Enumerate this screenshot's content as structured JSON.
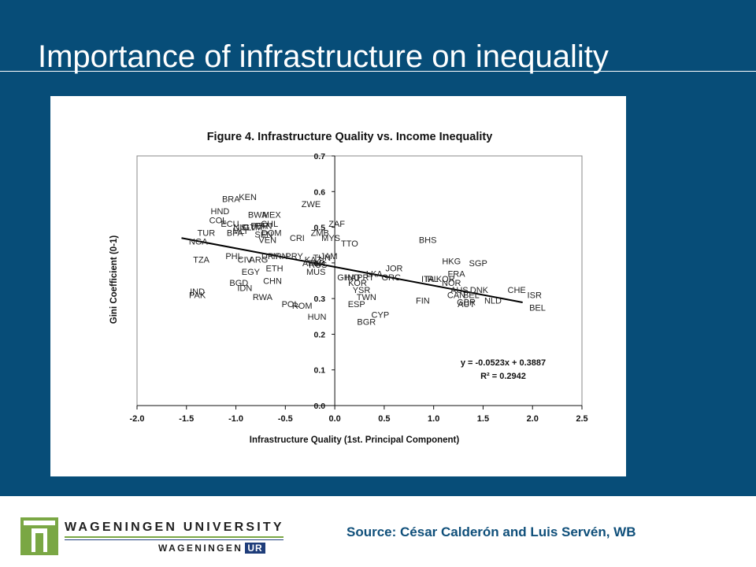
{
  "slide": {
    "title": "Importance of infrastructure on inequality",
    "source": "Source: César Calderón and Luis Servén, WB",
    "logo": {
      "line1": "WAGENINGEN UNIVERSITY",
      "line2": "WAGENINGEN",
      "badge": "UR"
    },
    "colors": {
      "band": "#074d78",
      "source_text": "#0f4f7a",
      "logo_green": "#7aa744",
      "logo_blue": "#1f3d7a"
    }
  },
  "chart_data": {
    "type": "scatter",
    "title": "Figure 4. Infrastructure Quality vs. Income Inequality",
    "xlabel": "Infrastructure Quality (1st. Principal Component)",
    "ylabel": "Gini Coefficient (0-1)",
    "xlim": [
      -2.0,
      2.5
    ],
    "ylim": [
      0.0,
      0.7
    ],
    "xticks": [
      -2.0,
      -1.5,
      -1.0,
      -0.5,
      0.0,
      0.5,
      1.0,
      1.5,
      2.0,
      2.5
    ],
    "xtick_labels": [
      "-2.0",
      "-1.5",
      "-1.0",
      "-0.5",
      "0.0",
      "0.5",
      "1.0",
      "1.5",
      "2.0",
      "2.5"
    ],
    "yticks": [
      0.0,
      0.1,
      0.2,
      0.3,
      0.4,
      0.5,
      0.6,
      0.7
    ],
    "ytick_labels": [
      "0.0",
      "0.1",
      "0.2",
      "0.3",
      "0.4",
      "0.5",
      "0.6",
      "0.7"
    ],
    "grid": false,
    "marker": "country-code-labels",
    "points": [
      {
        "label": "BRA",
        "x": -1.05,
        "y": 0.58
      },
      {
        "label": "KEN",
        "x": -0.88,
        "y": 0.585
      },
      {
        "label": "ZWE",
        "x": -0.24,
        "y": 0.565
      },
      {
        "label": "HND",
        "x": -1.16,
        "y": 0.545
      },
      {
        "label": "BWA",
        "x": -0.78,
        "y": 0.535
      },
      {
        "label": "MEX",
        "x": -0.64,
        "y": 0.535
      },
      {
        "label": "COL",
        "x": -1.18,
        "y": 0.52
      },
      {
        "label": "ECU",
        "x": -1.06,
        "y": 0.51
      },
      {
        "label": "CHL",
        "x": -0.66,
        "y": 0.51
      },
      {
        "label": "ZAF",
        "x": 0.02,
        "y": 0.51
      },
      {
        "label": "PER",
        "x": -0.76,
        "y": 0.505
      },
      {
        "label": "PAN",
        "x": -0.72,
        "y": 0.505
      },
      {
        "label": "NIC",
        "x": -0.95,
        "y": 0.5
      },
      {
        "label": "GTM",
        "x": -0.83,
        "y": 0.5
      },
      {
        "label": "SLV",
        "x": -0.87,
        "y": 0.5
      },
      {
        "label": "TUR",
        "x": -1.3,
        "y": 0.485
      },
      {
        "label": "BFA",
        "x": -1.01,
        "y": 0.485
      },
      {
        "label": "DOM",
        "x": -0.64,
        "y": 0.485
      },
      {
        "label": "ZMB",
        "x": -0.15,
        "y": 0.485
      },
      {
        "label": "MLI",
        "x": -0.96,
        "y": 0.49
      },
      {
        "label": "SEN",
        "x": -0.72,
        "y": 0.48
      },
      {
        "label": "NGA",
        "x": -1.38,
        "y": 0.46
      },
      {
        "label": "VEN",
        "x": -0.68,
        "y": 0.465
      },
      {
        "label": "CRI",
        "x": -0.38,
        "y": 0.47
      },
      {
        "label": "MYS",
        "x": -0.04,
        "y": 0.47
      },
      {
        "label": "BHS",
        "x": 0.94,
        "y": 0.465
      },
      {
        "label": "TTO",
        "x": 0.15,
        "y": 0.455
      },
      {
        "label": "PHL",
        "x": -1.02,
        "y": 0.42
      },
      {
        "label": "URY",
        "x": -0.65,
        "y": 0.42
      },
      {
        "label": "IRN",
        "x": -0.55,
        "y": 0.42
      },
      {
        "label": "PRY",
        "x": -0.41,
        "y": 0.42
      },
      {
        "label": "JAM",
        "x": -0.06,
        "y": 0.42
      },
      {
        "label": "TZA",
        "x": -1.35,
        "y": 0.41
      },
      {
        "label": "CIV",
        "x": -0.91,
        "y": 0.41
      },
      {
        "label": "ARG",
        "x": -0.77,
        "y": 0.41
      },
      {
        "label": "KAZ",
        "x": -0.22,
        "y": 0.41
      },
      {
        "label": "TUN",
        "x": -0.13,
        "y": 0.415
      },
      {
        "label": "HKG",
        "x": 1.18,
        "y": 0.405
      },
      {
        "label": "SGP",
        "x": 1.45,
        "y": 0.4
      },
      {
        "label": "ETH",
        "x": -0.61,
        "y": 0.385
      },
      {
        "label": "EGY",
        "x": -0.85,
        "y": 0.375
      },
      {
        "label": "MUS",
        "x": -0.19,
        "y": 0.375
      },
      {
        "label": "JOR",
        "x": 0.6,
        "y": 0.385
      },
      {
        "label": "RUS",
        "x": -0.17,
        "y": 0.395
      },
      {
        "label": "ARM",
        "x": -0.23,
        "y": 0.4
      },
      {
        "label": "GHA",
        "x": 0.12,
        "y": 0.36
      },
      {
        "label": "IND",
        "x": 0.18,
        "y": 0.36
      },
      {
        "label": "LKA",
        "x": 0.4,
        "y": 0.37
      },
      {
        "label": "PRT",
        "x": 0.31,
        "y": 0.36
      },
      {
        "label": "GRC",
        "x": 0.57,
        "y": 0.36
      },
      {
        "label": "ITA",
        "x": 0.94,
        "y": 0.355
      },
      {
        "label": "IRL",
        "x": 0.98,
        "y": 0.355
      },
      {
        "label": "FRA",
        "x": 1.23,
        "y": 0.37
      },
      {
        "label": "KOR",
        "x": 1.12,
        "y": 0.355
      },
      {
        "label": "NOR",
        "x": 1.18,
        "y": 0.345
      },
      {
        "label": "BGD",
        "x": -0.97,
        "y": 0.345
      },
      {
        "label": "CHN",
        "x": -0.63,
        "y": 0.35
      },
      {
        "label": "KOR",
        "x": 0.23,
        "y": 0.345
      },
      {
        "label": "IDN",
        "x": -0.91,
        "y": 0.33
      },
      {
        "label": "YSR",
        "x": 0.27,
        "y": 0.325
      },
      {
        "label": "CHE",
        "x": 1.84,
        "y": 0.325
      },
      {
        "label": "DNK",
        "x": 1.46,
        "y": 0.325
      },
      {
        "label": "AUS",
        "x": 1.26,
        "y": 0.325
      },
      {
        "label": "BEL",
        "x": 1.38,
        "y": 0.31
      },
      {
        "label": "CAN",
        "x": 1.23,
        "y": 0.31
      },
      {
        "label": "IND",
        "x": -1.39,
        "y": 0.32
      },
      {
        "label": "PAK",
        "x": -1.39,
        "y": 0.31
      },
      {
        "label": "RWA",
        "x": -0.73,
        "y": 0.305
      },
      {
        "label": "TWN",
        "x": 0.32,
        "y": 0.305
      },
      {
        "label": "ISR",
        "x": 2.02,
        "y": 0.31
      },
      {
        "label": "NLD",
        "x": 1.6,
        "y": 0.295
      },
      {
        "label": "FIN",
        "x": 0.89,
        "y": 0.295
      },
      {
        "label": "GBR",
        "x": 1.33,
        "y": 0.29
      },
      {
        "label": "AUT",
        "x": 1.33,
        "y": 0.285
      },
      {
        "label": "ESP",
        "x": 0.22,
        "y": 0.285
      },
      {
        "label": "POL",
        "x": -0.45,
        "y": 0.285
      },
      {
        "label": "ROM",
        "x": -0.33,
        "y": 0.28
      },
      {
        "label": "BEL",
        "x": 2.05,
        "y": 0.275
      },
      {
        "label": "HUN",
        "x": -0.18,
        "y": 0.25
      },
      {
        "label": "CYP",
        "x": 0.46,
        "y": 0.255
      },
      {
        "label": "BGR",
        "x": 0.32,
        "y": 0.235
      }
    ],
    "trendline": {
      "slope": -0.0523,
      "intercept": 0.3887,
      "x_range": [
        -1.55,
        1.9
      ]
    },
    "annotations": [
      "y = -0.0523x + 0.3887",
      "R² = 0.2942"
    ],
    "legend": "none"
  }
}
